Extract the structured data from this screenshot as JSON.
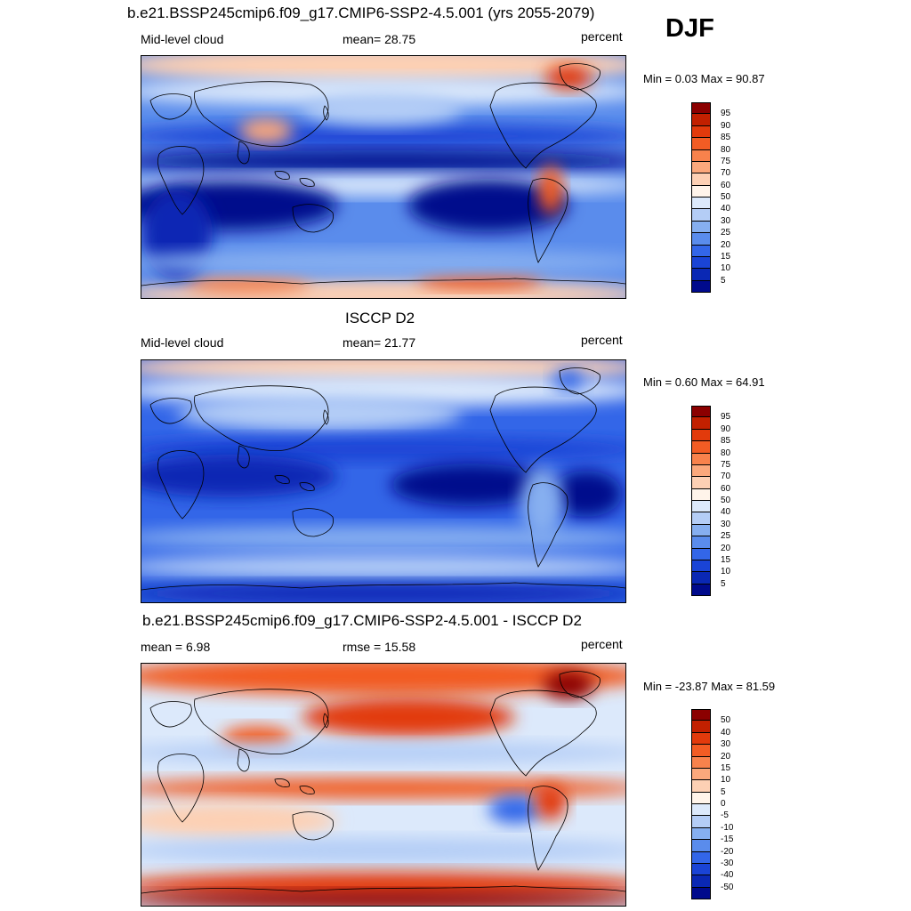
{
  "season": "DJF",
  "panels": [
    {
      "title": "b.e21.BSSP245cmip6.f09_g17.CMIP6-SSP2-4.5.001 (yrs 2055-2079)",
      "left_label": "Mid-level cloud",
      "center_label": "mean=  28.75",
      "right_label": "percent",
      "minmax": "Min =   0.03 Max =  90.87",
      "colorbar_ticks": [
        "95",
        "90",
        "85",
        "80",
        "75",
        "70",
        "60",
        "50",
        "40",
        "30",
        "25",
        "20",
        "15",
        "10",
        "5"
      ],
      "colorbar_colors": [
        "#8b0000",
        "#c22000",
        "#e23a0c",
        "#f25c24",
        "#f8824c",
        "#fba87c",
        "#fdd0b4",
        "#fff4ea",
        "#dce9fb",
        "#b4cdf6",
        "#86aff0",
        "#5a8cec",
        "#3366e8",
        "#1a44d6",
        "#0a28b4",
        "#000a8c"
      ],
      "map_style": "model"
    },
    {
      "title": "ISCCP D2",
      "left_label": "Mid-level cloud",
      "center_label": "mean=  21.77",
      "right_label": "percent",
      "minmax": "Min =   0.60 Max =  64.91",
      "colorbar_ticks": [
        "95",
        "90",
        "85",
        "80",
        "75",
        "70",
        "60",
        "50",
        "40",
        "30",
        "25",
        "20",
        "15",
        "10",
        "5"
      ],
      "colorbar_colors": [
        "#8b0000",
        "#c22000",
        "#e23a0c",
        "#f25c24",
        "#f8824c",
        "#fba87c",
        "#fdd0b4",
        "#fff4ea",
        "#dce9fb",
        "#b4cdf6",
        "#86aff0",
        "#5a8cec",
        "#3366e8",
        "#1a44d6",
        "#0a28b4",
        "#000a8c"
      ],
      "map_style": "obs"
    },
    {
      "title": "b.e21.BSSP245cmip6.f09_g17.CMIP6-SSP2-4.5.001 - ISCCP D2",
      "left_label": "mean =   6.98",
      "center_label": "rmse =  15.58",
      "right_label": "percent",
      "minmax": "Min = -23.87 Max =  81.59",
      "colorbar_ticks": [
        "50",
        "40",
        "30",
        "20",
        "15",
        "10",
        "5",
        "0",
        "-5",
        "-10",
        "-15",
        "-20",
        "-30",
        "-40",
        "-50"
      ],
      "colorbar_colors": [
        "#8b0000",
        "#c22000",
        "#e23a0c",
        "#f25c24",
        "#f8824c",
        "#fba87c",
        "#fdd0b4",
        "#fff4ea",
        "#dce9fb",
        "#b4cdf6",
        "#86aff0",
        "#5a8cec",
        "#3366e8",
        "#1a44d6",
        "#0a28b4",
        "#000a8c"
      ],
      "map_style": "diff"
    }
  ],
  "chart_data": [
    {
      "type": "heatmap",
      "title": "b.e21.BSSP245cmip6.f09_g17.CMIP6-SSP2-4.5.001 (yrs 2055-2079)",
      "variable": "Mid-level cloud",
      "units": "percent",
      "mean": 28.75,
      "min": 0.03,
      "max": 90.87,
      "contour_levels": [
        5,
        10,
        15,
        20,
        25,
        30,
        40,
        50,
        60,
        70,
        75,
        80,
        85,
        90,
        95
      ]
    },
    {
      "type": "heatmap",
      "title": "ISCCP D2",
      "variable": "Mid-level cloud",
      "units": "percent",
      "mean": 21.77,
      "min": 0.6,
      "max": 64.91,
      "contour_levels": [
        5,
        10,
        15,
        20,
        25,
        30,
        40,
        50,
        60,
        70,
        75,
        80,
        85,
        90,
        95
      ]
    },
    {
      "type": "heatmap",
      "title": "b.e21.BSSP245cmip6.f09_g17.CMIP6-SSP2-4.5.001 - ISCCP D2",
      "units": "percent",
      "mean": 6.98,
      "rmse": 15.58,
      "min": -23.87,
      "max": 81.59,
      "contour_levels": [
        -50,
        -40,
        -30,
        -20,
        -15,
        -10,
        -5,
        0,
        5,
        10,
        15,
        20,
        30,
        40,
        50
      ]
    }
  ]
}
